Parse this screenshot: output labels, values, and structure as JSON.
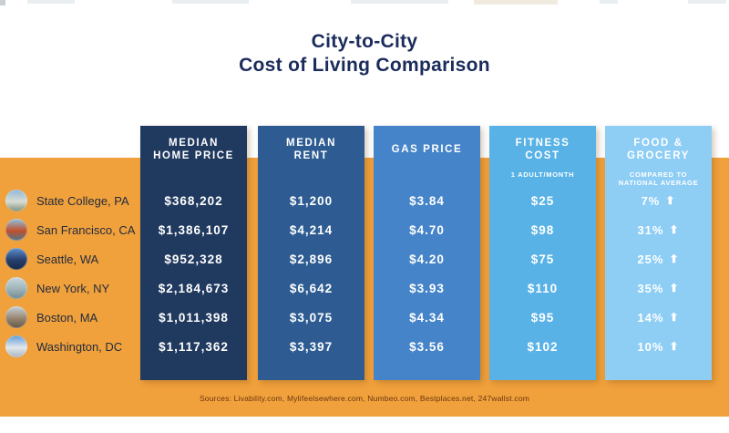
{
  "title": {
    "line1": "City-to-City",
    "line2": "Cost of Living Comparison"
  },
  "icons": {
    "up_arrow": "⬆"
  },
  "colors": {
    "background_band": "#f0a13c",
    "title_text": "#1b2b5b",
    "city_label_text": "#242b3d",
    "sources_text": "#6e3510",
    "column_text": "#ffffff"
  },
  "cities": [
    {
      "name": "State College, PA",
      "icon": "state-college-photo-icon",
      "icon_colors": [
        "#8fb8d8",
        "#d9dcd4",
        "#7c8f7a"
      ]
    },
    {
      "name": "San Francisco, CA",
      "icon": "golden-gate-bridge-photo-icon",
      "icon_colors": [
        "#8fc3e0",
        "#c0502c",
        "#49768f"
      ]
    },
    {
      "name": "Seattle, WA",
      "icon": "space-needle-photo-icon",
      "icon_colors": [
        "#5e8fd0",
        "#27406f",
        "#152848"
      ]
    },
    {
      "name": "New York, NY",
      "icon": "statue-of-liberty-photo-icon",
      "icon_colors": [
        "#c9d8de",
        "#9fb3b8",
        "#6f8a8f"
      ]
    },
    {
      "name": "Boston, MA",
      "icon": "boston-skyline-photo-icon",
      "icon_colors": [
        "#c3d3dc",
        "#9a8570",
        "#5f5648"
      ]
    },
    {
      "name": "Washington, DC",
      "icon": "capitol-photo-icon",
      "icon_colors": [
        "#5f9bd8",
        "#e3e8ec",
        "#a8b3bf"
      ]
    }
  ],
  "columns": [
    {
      "header_line1": "MEDIAN",
      "header_line2": "HOME PRICE",
      "subtitle_line1": "",
      "subtitle_line2": "",
      "color": "#20395f",
      "values": [
        "$368,202",
        "$1,386,107",
        "$952,328",
        "$2,184,673",
        "$1,011,398",
        "$1,117,362"
      ]
    },
    {
      "header_line1": "MEDIAN",
      "header_line2": "RENT",
      "subtitle_line1": "",
      "subtitle_line2": "",
      "color": "#2e5c92",
      "values": [
        "$1,200",
        "$4,214",
        "$2,896",
        "$6,642",
        "$3,075",
        "$3,397"
      ]
    },
    {
      "header_line1": "GAS PRICE",
      "header_line2": "",
      "subtitle_line1": "",
      "subtitle_line2": "",
      "color": "#4584c8",
      "values": [
        "$3.84",
        "$4.70",
        "$4.20",
        "$3.93",
        "$4.34",
        "$3.56"
      ]
    },
    {
      "header_line1": "FITNESS",
      "header_line2": "COST",
      "subtitle_line1": "1 ADULT/MONTH",
      "subtitle_line2": "",
      "color": "#58b2e6",
      "values": [
        "$25",
        "$98",
        "$75",
        "$110",
        "$95",
        "$102"
      ]
    },
    {
      "header_line1": "FOOD &",
      "header_line2": "GROCERY",
      "subtitle_line1": "COMPARED TO",
      "subtitle_line2": "NATIONAL AVERAGE",
      "color": "#8ecef5",
      "values": [
        "7%",
        "31%",
        "25%",
        "35%",
        "14%",
        "10%"
      ]
    }
  ],
  "footer": {
    "sources": "Sources: Livability.com, Mylifeelsewhere.com, Numbeo.com, Bestplaces.net, 247wallst.com"
  },
  "chart_data": {
    "type": "table",
    "title": "City-to-City Cost of Living Comparison",
    "categories": [
      "State College, PA",
      "San Francisco, CA",
      "Seattle, WA",
      "New York, NY",
      "Boston, MA",
      "Washington, DC"
    ],
    "series": [
      {
        "name": "Median Home Price",
        "values": [
          368202,
          1386107,
          952328,
          2184673,
          1011398,
          1117362
        ]
      },
      {
        "name": "Median Rent",
        "values": [
          1200,
          4214,
          2896,
          6642,
          3075,
          3397
        ]
      },
      {
        "name": "Gas Price",
        "values": [
          3.84,
          4.7,
          4.2,
          3.93,
          4.34,
          3.56
        ]
      },
      {
        "name": "Fitness Cost (1 adult/month)",
        "values": [
          25,
          98,
          75,
          110,
          95,
          102
        ]
      },
      {
        "name": "Food & Grocery vs national average (% above)",
        "values": [
          7,
          31,
          25,
          35,
          14,
          10
        ]
      }
    ],
    "legend_position": "none",
    "grid": false
  }
}
